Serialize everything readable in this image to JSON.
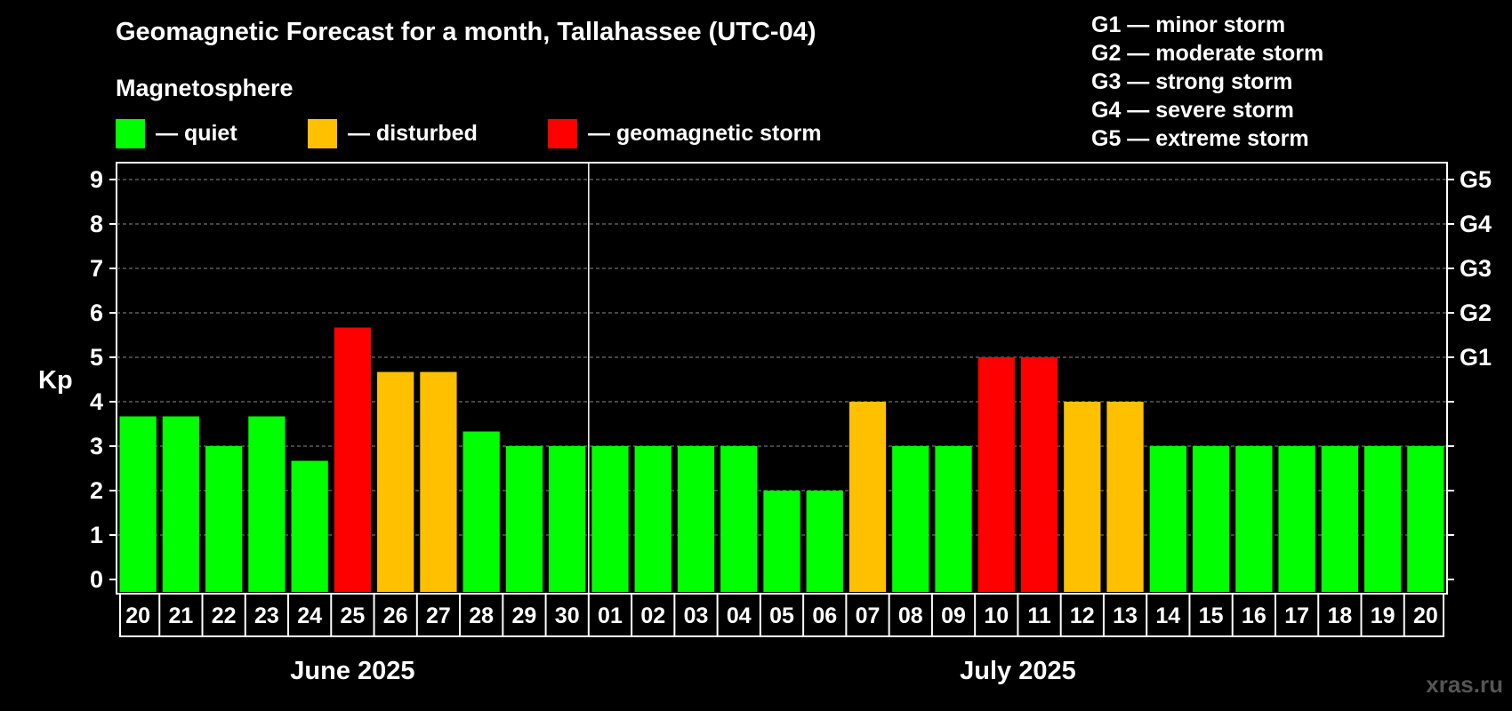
{
  "header": {
    "title": "Geomagnetic Forecast for a month, Tallahassee (UTC-04)",
    "subtitle": "Magnetosphere"
  },
  "legend": [
    {
      "label": "— quiet",
      "color": "#00ff00"
    },
    {
      "label": "— disturbed",
      "color": "#ffc000"
    },
    {
      "label": "— geomagnetic storm",
      "color": "#ff0000"
    }
  ],
  "storm_scale": [
    "G1 — minor storm",
    "G2 — moderate storm",
    "G3 — strong storm",
    "G4 — severe storm",
    "G5 — extreme storm"
  ],
  "watermark": "xras.ru",
  "chart_data": {
    "type": "bar",
    "ylabel": "Kp",
    "ylim": [
      0,
      9
    ],
    "y_ticks": [
      "0",
      "1",
      "2",
      "3",
      "4",
      "5",
      "6",
      "7",
      "8",
      "9"
    ],
    "right_axis_labels": [
      {
        "value": 5,
        "label": "G1"
      },
      {
        "value": 6,
        "label": "G2"
      },
      {
        "value": 7,
        "label": "G3"
      },
      {
        "value": 8,
        "label": "G4"
      },
      {
        "value": 9,
        "label": "G5"
      }
    ],
    "grid": "dashed horizontal",
    "categories": [
      "20",
      "21",
      "22",
      "23",
      "24",
      "25",
      "26",
      "27",
      "28",
      "29",
      "30",
      "01",
      "02",
      "03",
      "04",
      "05",
      "06",
      "07",
      "08",
      "09",
      "10",
      "11",
      "12",
      "13",
      "14",
      "15",
      "16",
      "17",
      "18",
      "19",
      "20"
    ],
    "values": [
      3.67,
      3.67,
      3,
      3.67,
      2.67,
      5.67,
      4.67,
      4.67,
      3.33,
      3,
      3,
      3,
      3,
      3,
      3,
      2,
      2,
      4,
      3,
      3,
      5,
      5,
      4,
      4,
      3,
      3,
      3,
      3,
      3,
      3,
      3
    ],
    "levels": [
      "quiet",
      "quiet",
      "quiet",
      "quiet",
      "quiet",
      "storm",
      "disturbed",
      "disturbed",
      "quiet",
      "quiet",
      "quiet",
      "quiet",
      "quiet",
      "quiet",
      "quiet",
      "quiet",
      "quiet",
      "disturbed",
      "quiet",
      "quiet",
      "storm",
      "storm",
      "disturbed",
      "disturbed",
      "quiet",
      "quiet",
      "quiet",
      "quiet",
      "quiet",
      "quiet",
      "quiet"
    ],
    "level_colors": {
      "quiet": "#00ff00",
      "disturbed": "#ffc000",
      "storm": "#ff0000"
    },
    "months": [
      {
        "label": "June 2025",
        "count": 11
      },
      {
        "label": "July 2025",
        "count": 20
      }
    ]
  }
}
